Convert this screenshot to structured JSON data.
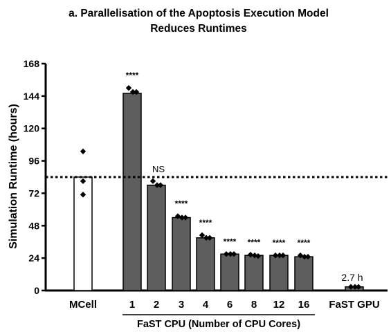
{
  "chart_data": {
    "type": "bar",
    "title": [
      "a. Parallelisation of the Apoptosis Execution Model",
      "Reduces Runtimes"
    ],
    "ylabel": "Simulation Runtime (hours)",
    "ylim": [
      0,
      168
    ],
    "yticks": [
      0,
      24,
      48,
      72,
      96,
      120,
      144,
      168
    ],
    "reference_line": 84,
    "categories": [
      "MCell",
      "1",
      "2",
      "3",
      "4",
      "6",
      "8",
      "12",
      "16",
      "FaST GPU"
    ],
    "category_labels": [
      "MCell",
      "1",
      "2",
      "3",
      "4",
      "6",
      "8",
      "12",
      "16",
      "FaST GPU"
    ],
    "group_label": "FaST CPU (Number of CPU Cores)",
    "values": [
      84,
      146,
      78,
      54,
      39,
      27,
      26,
      26,
      25,
      2.7
    ],
    "points": [
      [
        103,
        81,
        71
      ],
      [
        150,
        147,
        147
      ],
      [
        81,
        78,
        78
      ],
      [
        55,
        54,
        54
      ],
      [
        41,
        39,
        39
      ],
      [
        27,
        27,
        27
      ],
      [
        26.5,
        26,
        25.5
      ],
      [
        26,
        26,
        26
      ],
      [
        26,
        25,
        25
      ],
      [
        2.7,
        2.7,
        2.7
      ]
    ],
    "significance": [
      "",
      "****",
      "NS",
      "****",
      "****",
      "****",
      "****",
      "****",
      "****",
      ""
    ],
    "annotations": {
      "gpu_runtime": "2.7 h"
    },
    "colors": {
      "mcell": "#ffffff",
      "fast": "#5e5e5e",
      "edge": "#000000"
    }
  }
}
